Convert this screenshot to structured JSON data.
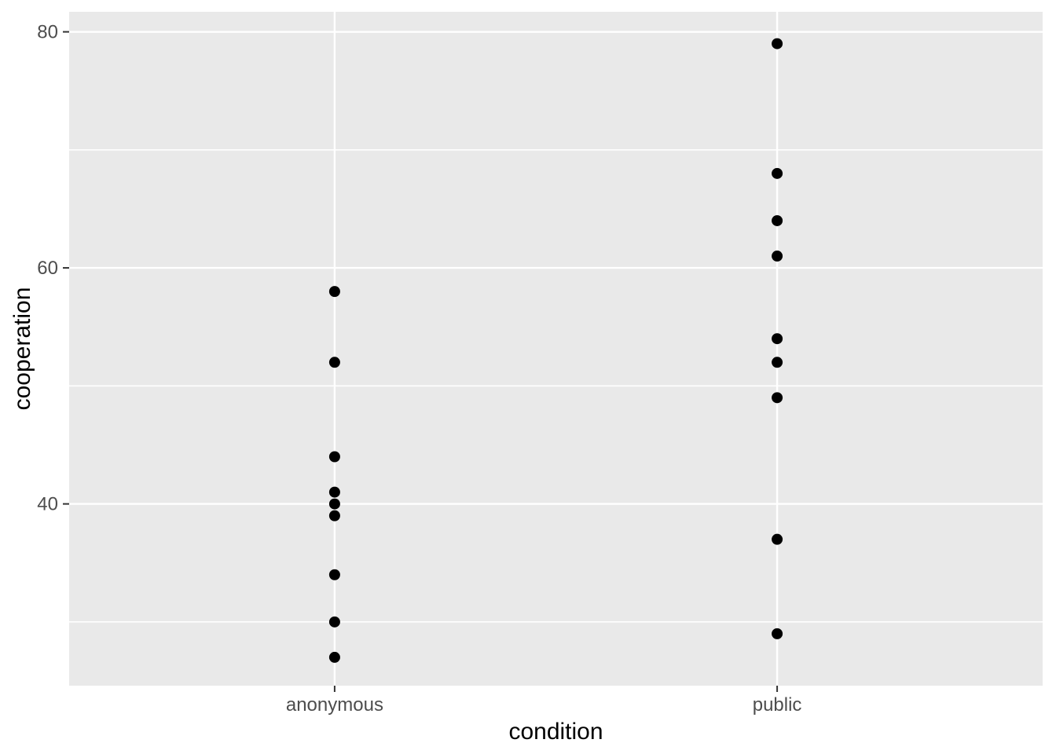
{
  "chart_data": {
    "type": "scatter",
    "title": "",
    "xlabel": "condition",
    "ylabel": "cooperation",
    "categories": [
      "anonymous",
      "public"
    ],
    "series": [
      {
        "name": "anonymous",
        "values": [
          27,
          30,
          34,
          39,
          40,
          41,
          44,
          52,
          58
        ]
      },
      {
        "name": "public",
        "values": [
          29,
          37,
          49,
          52,
          54,
          61,
          64,
          68,
          79
        ]
      }
    ],
    "ylim": [
      24.6,
      81.7
    ],
    "y_major_ticks": [
      40,
      60,
      80
    ],
    "y_tick_labels": [
      "40",
      "60",
      "80"
    ],
    "y_minor_gridlines": [
      30,
      50,
      70
    ],
    "grid": "on",
    "legend": "none",
    "style": {
      "panel_bg": "#E9E9E9",
      "grid_color": "#FFFFFF",
      "point_color": "#000000",
      "tick_label_color": "#4D4D4D",
      "axis_title_color": "#000000",
      "tick_mark_color": "#333333"
    }
  }
}
